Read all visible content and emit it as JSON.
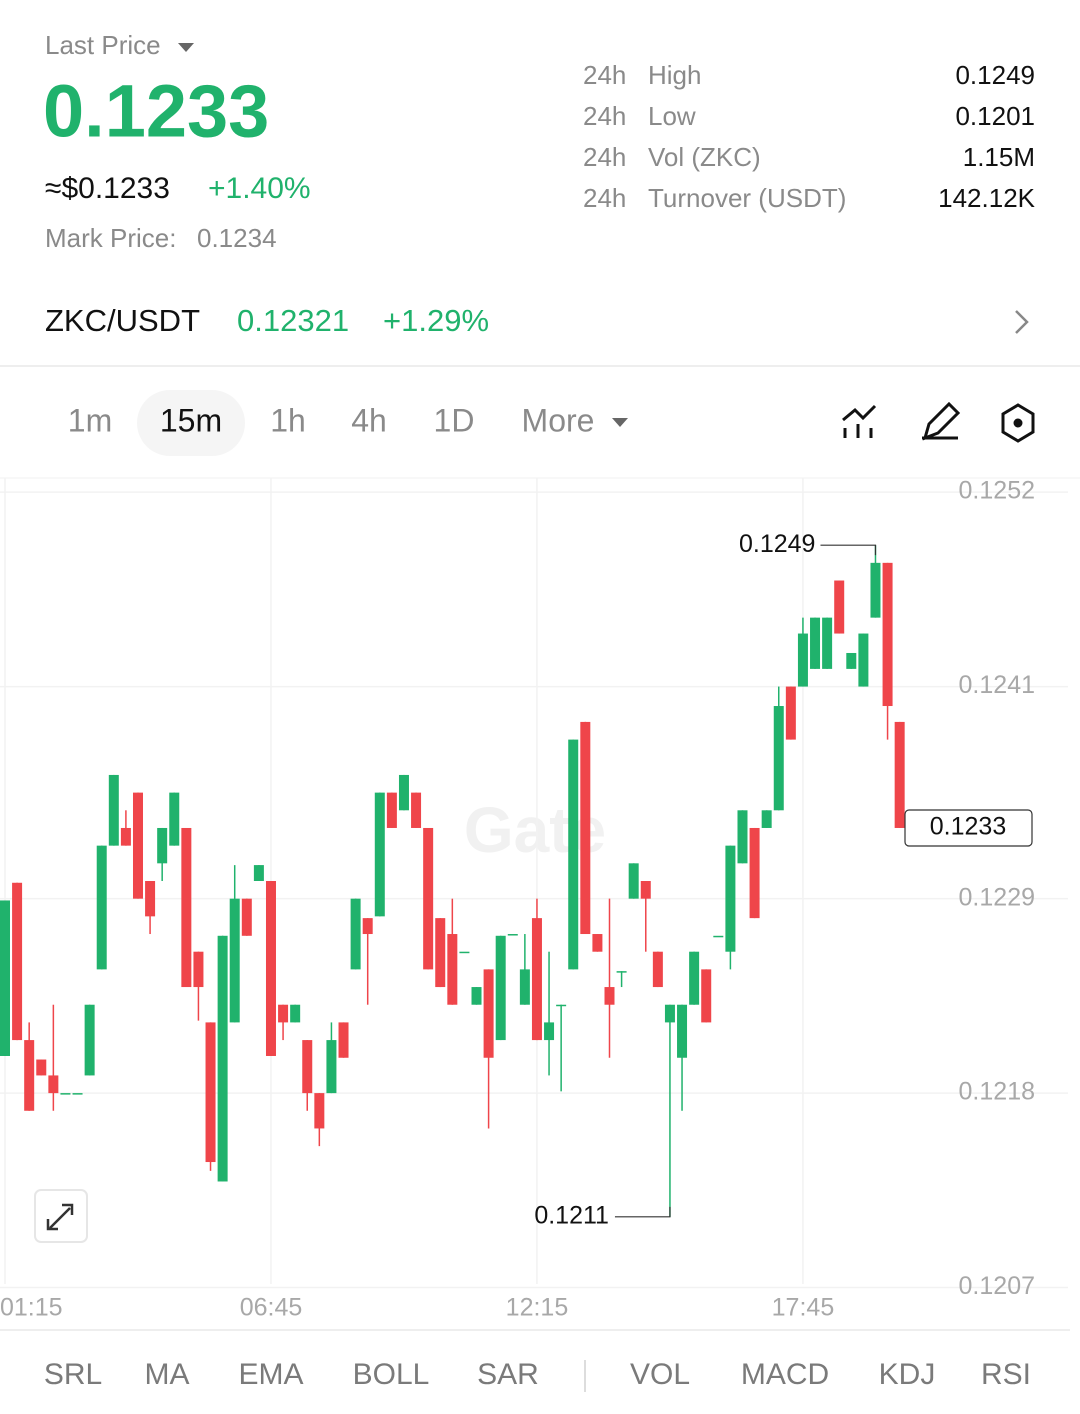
{
  "header": {
    "label": "Last Price",
    "price": "0.1233",
    "usd": "≈$0.1233",
    "change": "+1.40%",
    "mark_label": "Mark Price:",
    "mark_value": "0.1234"
  },
  "stats": [
    [
      "24h",
      "High",
      "0.1249"
    ],
    [
      "24h",
      "Low",
      "0.1201"
    ],
    [
      "24h",
      "Vol (ZKC)",
      "1.15M"
    ],
    [
      "24h",
      "Turnover (USDT)",
      "142.12K"
    ]
  ],
  "pair": {
    "name": "ZKC/USDT",
    "price": "0.12321",
    "change": "+1.29%"
  },
  "intervals": [
    "1m",
    "15m",
    "1h",
    "4h",
    "1D",
    "More"
  ],
  "indicators_left": [
    "SRL",
    "MA",
    "EMA",
    "BOLL",
    "SAR"
  ],
  "indicators_right": [
    "VOL",
    "MACD",
    "KDJ",
    "RSI"
  ],
  "watermark": "Gate",
  "chart_data": {
    "type": "candlestick",
    "up_color": "#20b26c",
    "down_color": "#ef454a",
    "grid": true,
    "categories": [
      "01:15",
      null,
      null,
      null,
      null,
      null,
      null,
      null,
      null,
      null,
      null,
      null,
      null,
      null,
      null,
      null,
      null,
      null,
      null,
      null,
      null,
      null,
      "06:45",
      null,
      null,
      null,
      null,
      null,
      null,
      null,
      null,
      null,
      null,
      null,
      null,
      null,
      null,
      null,
      null,
      null,
      null,
      null,
      null,
      null,
      "12:15",
      null,
      null,
      null,
      null,
      null,
      null,
      null,
      null,
      null,
      null,
      null,
      null,
      null,
      null,
      null,
      null,
      null,
      null,
      null,
      null,
      null,
      "17:45",
      null,
      null,
      null,
      null,
      null,
      null,
      null,
      null
    ],
    "open": [
      0.12201,
      0.12299,
      0.1221,
      0.12199,
      0.1219,
      0.1218,
      0.1218,
      0.1219,
      0.1225,
      0.1232,
      0.1233,
      0.1235,
      0.123,
      0.1231,
      0.1232,
      0.1233,
      0.1226,
      0.1222,
      0.1213,
      0.1222,
      0.1229,
      0.123,
      0.123,
      0.1223,
      0.1222,
      0.1221,
      0.1218,
      0.1218,
      0.1222,
      0.1225,
      0.12279,
      0.1228,
      0.1235,
      0.1234,
      0.1235,
      0.1233,
      0.12279,
      0.1227,
      0.1226,
      0.1223,
      0.1225,
      0.1221,
      0.1227,
      0.1223,
      0.12279,
      0.1221,
      0.1223,
      0.1225,
      0.1239,
      0.1227,
      0.1224,
      0.12249,
      0.1229,
      0.123,
      0.1226,
      0.1222,
      0.122,
      0.1223,
      0.1225,
      0.12269,
      0.1226,
      0.1231,
      0.1233,
      0.1233,
      0.1234,
      0.1241,
      0.1241,
      0.1242,
      0.1242,
      0.1247,
      0.1242,
      0.1241,
      0.12449,
      0.1248,
      0.1239
    ],
    "high": [
      0.12289,
      0.12299,
      0.1222,
      0.12199,
      0.1223,
      0.1218,
      0.1218,
      0.1223,
      0.1232,
      0.1236,
      0.1234,
      0.1235,
      0.123,
      0.1233,
      0.1235,
      0.1233,
      0.1226,
      0.1222,
      0.12269,
      0.12309,
      0.1229,
      0.12309,
      0.123,
      0.1223,
      0.1223,
      0.1221,
      0.1218,
      0.1222,
      0.1222,
      0.1229,
      0.12279,
      0.1235,
      0.1235,
      0.1236,
      0.1235,
      0.1233,
      0.12279,
      0.1229,
      0.1226,
      0.1224,
      0.1225,
      0.12269,
      0.1227,
      0.1227,
      0.1229,
      0.1226,
      0.1223,
      0.1238,
      0.1239,
      0.1227,
      0.1229,
      0.12249,
      0.1231,
      0.123,
      0.1226,
      0.1223,
      0.1223,
      0.1226,
      0.1225,
      0.12269,
      0.1232,
      0.1234,
      0.1233,
      0.1234,
      0.1241,
      0.1241,
      0.12449,
      0.12449,
      0.12449,
      0.1247,
      0.12429,
      0.1244,
      0.1249,
      0.1248,
      0.1239
    ],
    "low": [
      0.12201,
      0.1221,
      0.1217,
      0.1219,
      0.1217,
      0.1218,
      0.1218,
      0.1219,
      0.1225,
      0.1232,
      0.1232,
      0.1229,
      0.1227,
      0.123,
      0.1232,
      0.1224,
      0.12221,
      0.12136,
      0.1213,
      0.1222,
      0.12269,
      0.123,
      0.12201,
      0.1221,
      0.1222,
      0.1217,
      0.1215,
      0.1218,
      0.122,
      0.1225,
      0.1223,
      0.1228,
      0.1233,
      0.1234,
      0.1233,
      0.1225,
      0.1224,
      0.1223,
      0.1226,
      0.1223,
      0.1216,
      0.1221,
      0.1227,
      0.1223,
      0.1221,
      0.1219,
      0.12181,
      0.1225,
      0.1227,
      0.1226,
      0.122,
      0.1224,
      0.1229,
      0.1226,
      0.1224,
      0.1211,
      0.1217,
      0.1223,
      0.1222,
      0.12269,
      0.1225,
      0.1231,
      0.12279,
      0.1233,
      0.1234,
      0.1238,
      0.1241,
      0.1242,
      0.1242,
      0.1244,
      0.1242,
      0.1241,
      0.12449,
      0.1238,
      0.1233
    ],
    "close": [
      0.12289,
      0.1221,
      0.1217,
      0.1219,
      0.1218,
      0.1218,
      0.1218,
      0.1223,
      0.1232,
      0.1236,
      0.1232,
      0.1229,
      0.1228,
      0.1233,
      0.1235,
      0.1224,
      0.1224,
      0.12141,
      0.12269,
      0.1229,
      0.12269,
      0.12309,
      0.12201,
      0.1222,
      0.1223,
      0.1218,
      0.1216,
      0.1221,
      0.122,
      0.1229,
      0.1227,
      0.1235,
      0.1233,
      0.1236,
      0.1233,
      0.1225,
      0.1224,
      0.1223,
      0.1226,
      0.1224,
      0.122,
      0.12269,
      0.1227,
      0.1225,
      0.1221,
      0.1222,
      0.1223,
      0.1238,
      0.1227,
      0.1226,
      0.1223,
      0.12249,
      0.1231,
      0.1229,
      0.1224,
      0.1223,
      0.1223,
      0.1226,
      0.1222,
      0.12269,
      0.1232,
      0.1234,
      0.12279,
      0.1234,
      0.12399,
      0.1238,
      0.1244,
      0.12449,
      0.12449,
      0.1244,
      0.12429,
      0.1244,
      0.1248,
      0.12399,
      0.1233
    ],
    "ylim": [
      0.12072,
      0.12528
    ],
    "yticks": [
      0.1252,
      0.1241,
      0.1229,
      0.1218,
      0.1207
    ]
  }
}
